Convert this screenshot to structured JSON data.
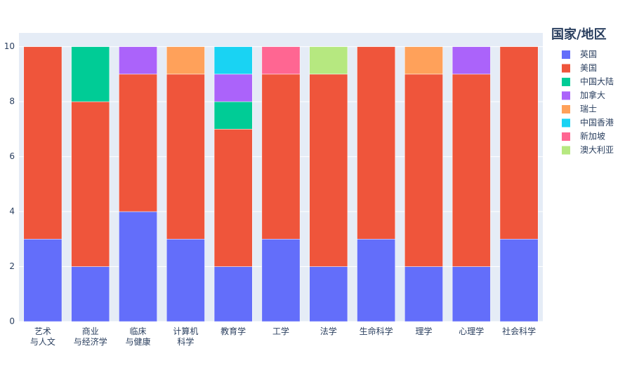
{
  "chart_data": {
    "type": "stacked-bar",
    "categories": [
      "艺术\n与人文",
      "商业\n与经济学",
      "临床\n与健康",
      "计算机\n科学",
      "教育学",
      "工学",
      "法学",
      "生命科学",
      "理学",
      "心理学",
      "社会科学"
    ],
    "series": [
      {
        "name": "英国",
        "color": "#636efa",
        "values": [
          3,
          2,
          4,
          3,
          2,
          3,
          2,
          3,
          2,
          2,
          3
        ]
      },
      {
        "name": "美国",
        "color": "#ef553b",
        "values": [
          7,
          6,
          5,
          6,
          5,
          6,
          7,
          7,
          7,
          7,
          7
        ]
      },
      {
        "name": "中国大陆",
        "color": "#00cc96",
        "values": [
          0,
          2,
          0,
          0,
          1,
          0,
          0,
          0,
          0,
          0,
          0
        ]
      },
      {
        "name": "加拿大",
        "color": "#ab63fa",
        "values": [
          0,
          0,
          1,
          0,
          1,
          0,
          0,
          0,
          0,
          1,
          0
        ]
      },
      {
        "name": "瑞士",
        "color": "#ffa15a",
        "values": [
          0,
          0,
          0,
          1,
          0,
          0,
          0,
          0,
          1,
          0,
          0
        ]
      },
      {
        "name": "中国香港",
        "color": "#19d3f3",
        "values": [
          0,
          0,
          0,
          0,
          1,
          0,
          0,
          0,
          0,
          0,
          0
        ]
      },
      {
        "name": "新加坡",
        "color": "#ff6692",
        "values": [
          0,
          0,
          0,
          0,
          0,
          1,
          0,
          0,
          0,
          0,
          0
        ]
      },
      {
        "name": "澳大利亚",
        "color": "#b6e880",
        "values": [
          0,
          0,
          0,
          0,
          0,
          0,
          1,
          0,
          0,
          0,
          0
        ]
      }
    ],
    "legend_title": "国家/地区",
    "ylim": [
      0,
      10.5
    ],
    "yticks": [
      0,
      2,
      4,
      6,
      8,
      10
    ],
    "grid": true,
    "legend": "right"
  }
}
